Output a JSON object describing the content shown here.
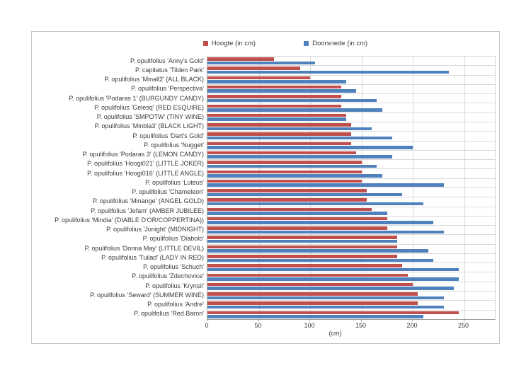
{
  "chart_data": {
    "type": "bar",
    "orientation": "horizontal",
    "title": "",
    "xlabel": "(cm)",
    "x_ticks": [
      0,
      50,
      100,
      150,
      200,
      250
    ],
    "x_max": 280,
    "grid": true,
    "legend_position": "top",
    "categories": [
      "P. opulifolius 'Anny's Gold'",
      "P. capitatus 'Tilden Park'",
      "P. opulifolius 'Minall2' (ALL BLACK)",
      "P. opulifolius 'Perspectiva'",
      "P. opulifolius 'Podaras 1' (BURGUNDY CANDY)",
      "P. opulifolius 'Gelesq' (RED ESQUIRE)",
      "P. opulifolius 'SMPOTW' (TINY WINE)",
      "P. opulifolius 'Minbla3' (BLACK LIGHT)",
      "P. opulifolius 'Dart's Gold'",
      "P. opulifolius 'Nugget'",
      "P. opulifolius 'Podaras 3' (LEMON CANDY)",
      "P. opulifolius 'Hoogi021' (LITTLE JOKER)",
      "P. opulifolius 'Hoogi016' (LITTLE ANGLE)",
      "P. opulifolius 'Luteus'",
      "P. opulifolius 'Chameleon'",
      "P. opulifolius 'Minange' (ANGEL GOLD)",
      "P. opulifolius 'Jefam' (AMBER JUBILEE)",
      "P. opulifolius 'Mindia' (DIABLE D'OR/COPPERTINA))",
      "P. opulifolius 'Jonight' (MIDNIGHT)",
      "P. opulifolius 'Diabolo'",
      "P. opulifolius 'Donna May' (LITTLE DEVIL)",
      "P. opulifolius 'Tuilad' (LADY IN RED)",
      "P. opulifolius 'Schuch'",
      "P. opulifolius 'Zdechovice'",
      "P. opulifolius 'Krynsii'",
      "P. opulifolius 'Seward' (SUMMER WINE)",
      "P. opulifolius 'Andre'",
      "P. opulifolius 'Red Baron'"
    ],
    "series": [
      {
        "key": "hoogte",
        "name": "Hoogte (in cm)",
        "color": "#c0504d",
        "values": [
          65,
          90,
          100,
          130,
          130,
          130,
          135,
          140,
          140,
          140,
          145,
          150,
          150,
          150,
          155,
          155,
          160,
          175,
          175,
          185,
          185,
          185,
          190,
          195,
          200,
          205,
          205,
          245
        ]
      },
      {
        "key": "doorsnede",
        "name": "Doorsnede (in cm)",
        "color": "#4f81bd",
        "values": [
          105,
          235,
          135,
          145,
          165,
          170,
          135,
          160,
          180,
          200,
          180,
          165,
          170,
          230,
          190,
          210,
          175,
          220,
          230,
          185,
          215,
          220,
          245,
          245,
          240,
          230,
          230,
          210
        ]
      }
    ],
    "colors": {
      "grid": "#d9d9d9",
      "axis": "#9a9a9a",
      "text": "#3b3b3b",
      "frame_border": "#c6c6c6"
    }
  }
}
